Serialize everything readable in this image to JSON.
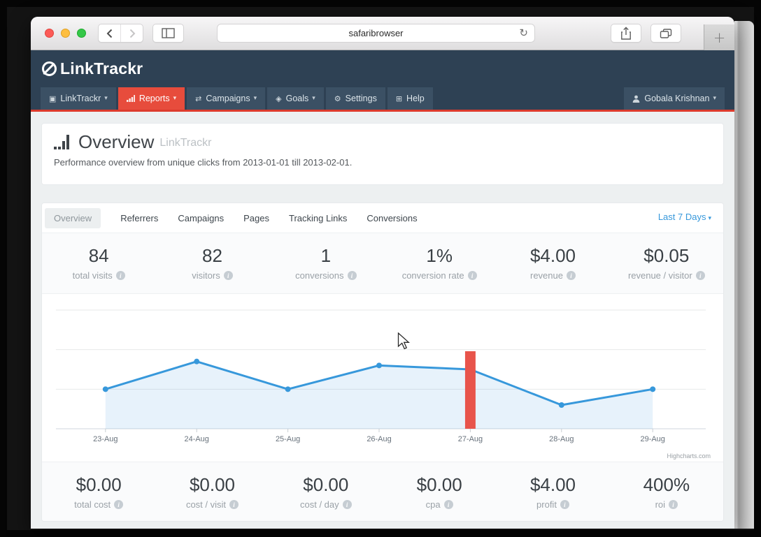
{
  "browser": {
    "url_text": "safaribrowser",
    "new_tab_glyph": "+",
    "refresh_glyph": "↻"
  },
  "app": {
    "logo_text": "LinkTrackr",
    "accent_red": "#e74c3c",
    "header_navy": "#2e4154",
    "nav": {
      "items": [
        {
          "label": "LinkTrackr",
          "glyph": "▣",
          "caret": "▾"
        },
        {
          "label": "Reports",
          "caret": "▾"
        },
        {
          "label": "Campaigns",
          "glyph": "⇄",
          "caret": "▾"
        },
        {
          "label": "Goals",
          "glyph": "◈",
          "caret": "▾"
        },
        {
          "label": "Settings",
          "glyph": "⚙"
        },
        {
          "label": "Help",
          "glyph": "⊞"
        }
      ],
      "user": {
        "label": "Gobala Krishnan",
        "caret": "▾"
      }
    }
  },
  "page": {
    "heading": "Overview",
    "heading_suffix": "LinkTrackr",
    "subtitle": "Performance overview from unique clicks from 2013-01-01 till 2013-02-01.",
    "tabs": [
      "Overview",
      "Referrers",
      "Campaigns",
      "Pages",
      "Tracking Links",
      "Conversions"
    ],
    "active_tab": "Overview",
    "range_selector": {
      "label": "Last 7 Days",
      "caret": "▾"
    },
    "stats_top": [
      {
        "value": "84",
        "label": "total visits"
      },
      {
        "value": "82",
        "label": "visitors"
      },
      {
        "value": "1",
        "label": "conversions"
      },
      {
        "value": "1%",
        "label": "conversion rate"
      },
      {
        "value": "$4.00",
        "label": "revenue"
      },
      {
        "value": "$0.05",
        "label": "revenue / visitor"
      }
    ],
    "stats_bottom": [
      {
        "value": "$0.00",
        "label": "total cost"
      },
      {
        "value": "$0.00",
        "label": "cost / visit"
      },
      {
        "value": "$0.00",
        "label": "cost / day"
      },
      {
        "value": "$0.00",
        "label": "cpa"
      },
      {
        "value": "$4.00",
        "label": "profit"
      },
      {
        "value": "400%",
        "label": "roi"
      }
    ]
  },
  "chart_data": {
    "type": "area",
    "categories": [
      "23-Aug",
      "24-Aug",
      "25-Aug",
      "26-Aug",
      "27-Aug",
      "28-Aug",
      "29-Aug"
    ],
    "series": [
      {
        "name": "visits",
        "type": "area-line",
        "color": "#3798db",
        "fill": "rgba(55,152,219,0.12)",
        "values": [
          10,
          17,
          10,
          16,
          15,
          6,
          10
        ]
      },
      {
        "name": "conversions",
        "type": "column",
        "color": "#e8544b",
        "points": [
          {
            "category": "27-Aug",
            "value": 1,
            "display_height_primary_units": 19.6
          }
        ]
      }
    ],
    "ylim": [
      0,
      30
    ],
    "gridline_interval": 10,
    "y_axis_labels_visible": false,
    "legend": false,
    "credit": "Highcharts.com"
  }
}
